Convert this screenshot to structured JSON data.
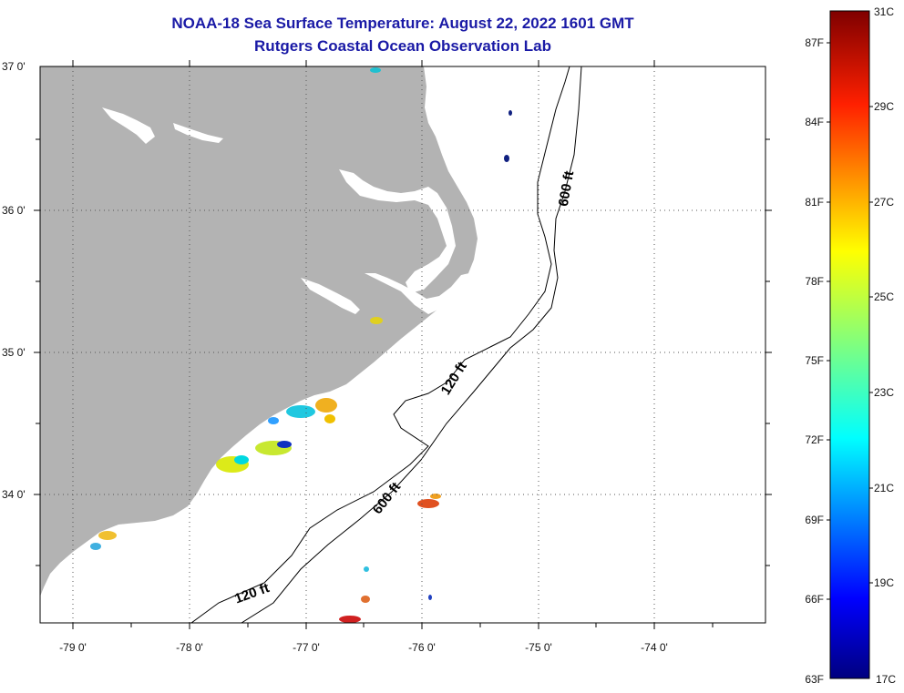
{
  "title": {
    "line1": "NOAA-18 Sea Surface Temperature:  August 22, 2022 1601 GMT",
    "line2": "Rutgers Coastal Ocean Observation Lab"
  },
  "map": {
    "lon_labels": [
      "-79 0'",
      "-78 0'",
      "-77 0'",
      "-76 0'",
      "-75 0'",
      "-74 0'"
    ],
    "lat_labels": [
      "37 0'",
      "36 0'",
      "35 0'",
      "34 0'"
    ],
    "contour_labels": [
      "600 ft",
      "120 ft",
      "600 ft",
      "120 ft"
    ],
    "colors": {
      "land": "#b3b3b3",
      "water": "#ffffff",
      "contour": "#000000",
      "grid": "#555555"
    }
  },
  "colorbar": {
    "celsius_labels": [
      "31C",
      "29C",
      "27C",
      "25C",
      "23C",
      "21C",
      "19C",
      "17C"
    ],
    "fahrenheit_labels": [
      "87F",
      "84F",
      "81F",
      "78F",
      "75F",
      "72F",
      "69F",
      "66F",
      "63F"
    ],
    "range_c": [
      17,
      31
    ]
  }
}
